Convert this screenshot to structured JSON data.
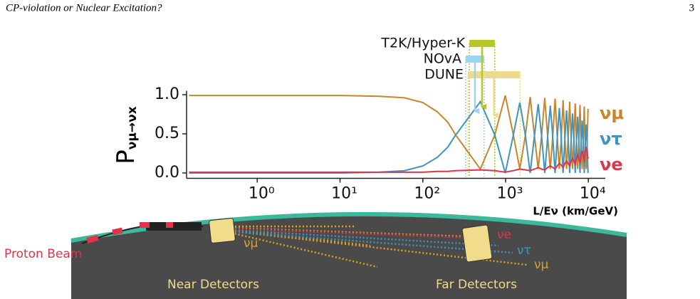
{
  "header": {
    "title": "CP-violation or Nuclear Excitation?",
    "page": "3"
  },
  "chart_data": {
    "type": "line",
    "ylabel": "P",
    "ylabel_sub": "νμ→νx",
    "xlabel": "L/Eν (km/GeV)",
    "log_x": true,
    "xlim": [
      0.14,
      16000
    ],
    "xticks": [
      {
        "value": 1,
        "label": "10⁰"
      },
      {
        "value": 10,
        "label": "10¹"
      },
      {
        "value": 100,
        "label": "10²"
      },
      {
        "value": 1000,
        "label": "10³"
      },
      {
        "value": 10000,
        "label": "10⁴"
      }
    ],
    "ylim": [
      -0.05,
      1.05
    ],
    "yticks": [
      {
        "value": 0,
        "label": "0.0"
      },
      {
        "value": 0.5,
        "label": "0.5"
      },
      {
        "value": 1,
        "label": "1.0"
      }
    ],
    "x": [
      0.15,
      1,
      3,
      10,
      30,
      60,
      100,
      150,
      200,
      247.5,
      495,
      742.5,
      990,
      1237.5,
      1485,
      1732.5,
      1980,
      2227.5,
      2475,
      2722.5,
      2970,
      3217.5,
      3465,
      3712.5,
      3960,
      4207.5,
      4455,
      4702.5,
      4950,
      5197.5,
      5445,
      5692.5,
      5940,
      6187.5,
      6435,
      6682.5,
      6930,
      7177.5,
      7425,
      7672.5,
      7920,
      8167.5,
      8415,
      8662.5,
      8910,
      9157.5,
      9405,
      9652.5,
      9900
    ],
    "series": [
      {
        "name": "νμ",
        "color": "#c8862a",
        "values": [
          0.99,
          0.99,
          0.99,
          0.99,
          0.98,
          0.96,
          0.9,
          0.78,
          0.65,
          0.49,
          0.05,
          0.49,
          0.99,
          0.49,
          0.05,
          0.48,
          0.97,
          0.48,
          0.05,
          0.48,
          0.96,
          0.47,
          0.05,
          0.47,
          0.95,
          0.46,
          0.05,
          0.45,
          0.93,
          0.44,
          0.05,
          0.44,
          0.91,
          0.43,
          0.05,
          0.43,
          0.89,
          0.41,
          0.05,
          0.41,
          0.87,
          0.39,
          0.05,
          0.39,
          0.85,
          0.37,
          0.05,
          0.37,
          0.82
        ]
      },
      {
        "name": "ντ",
        "color": "#3f95c0",
        "values": [
          0,
          0,
          0,
          0,
          0.01,
          0.03,
          0.09,
          0.2,
          0.33,
          0.48,
          0.91,
          0.48,
          0,
          0.48,
          0.9,
          0.48,
          0,
          0.47,
          0.88,
          0.47,
          0,
          0.46,
          0.86,
          0.46,
          0,
          0.45,
          0.83,
          0.45,
          0,
          0.44,
          0.8,
          0.44,
          0,
          0.42,
          0.76,
          0.42,
          0,
          0.41,
          0.72,
          0.41,
          0,
          0.39,
          0.67,
          0.39,
          0,
          0.37,
          0.62,
          0.37,
          0
        ]
      },
      {
        "name": "νe",
        "color": "#e0344c",
        "values": [
          0.01,
          0.01,
          0.01,
          0.01,
          0.01,
          0.01,
          0.01,
          0.02,
          0.02,
          0.03,
          0.04,
          0.03,
          0.01,
          0.03,
          0.05,
          0.04,
          0.03,
          0.05,
          0.07,
          0.05,
          0.04,
          0.07,
          0.09,
          0.07,
          0.05,
          0.09,
          0.12,
          0.1,
          0.07,
          0.12,
          0.15,
          0.12,
          0.09,
          0.15,
          0.19,
          0.15,
          0.11,
          0.18,
          0.23,
          0.18,
          0.13,
          0.22,
          0.28,
          0.22,
          0.15,
          0.26,
          0.33,
          0.26,
          0.18
        ]
      }
    ],
    "bands": [
      {
        "name": "T2K/Hyper-K",
        "range": [
          365,
          740
        ],
        "color": "#b5c824"
      },
      {
        "name": "NOvA",
        "range": [
          330,
          550
        ],
        "color": "#9ad4ee"
      },
      {
        "name": "DUNE",
        "range": [
          350,
          1500
        ],
        "color": "#ecdb8a"
      }
    ]
  },
  "illustration": {
    "beam_label": "Proton Beam",
    "near_label": "Near Detectors",
    "far_label": "Far Detectors",
    "near_flavor": "νμ",
    "far_flavors": [
      "νe",
      "ντ",
      "νμ"
    ]
  }
}
